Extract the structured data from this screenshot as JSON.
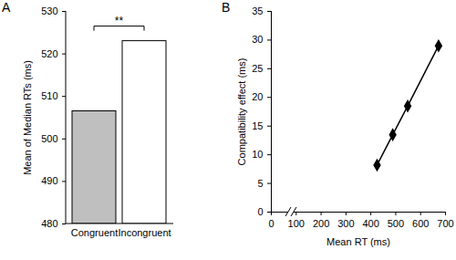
{
  "chart_data": [
    {
      "type": "bar",
      "title": "A",
      "categories": [
        "Congruent",
        "Incongruent"
      ],
      "values": [
        506.5,
        523
      ],
      "colors": [
        "#bfbfbf",
        "#ffffff"
      ],
      "ylabel": "Mean of Median RTs (ms)",
      "ylim": [
        480,
        530
      ],
      "yticks": [
        480,
        490,
        500,
        510,
        520,
        530
      ],
      "annotations": [
        {
          "text": "**",
          "between": [
            "Congruent",
            "Incongruent"
          ]
        }
      ]
    },
    {
      "type": "line",
      "title": "B",
      "x": [
        425,
        488,
        548,
        672
      ],
      "values": [
        8.2,
        13.5,
        18.5,
        29
      ],
      "xlabel": "Mean RT (ms)",
      "ylabel": "Compatibility effect (ms)",
      "xlim": [
        0,
        700
      ],
      "xticks": [
        0,
        100,
        200,
        300,
        400,
        500,
        600,
        700
      ],
      "ylim": [
        0,
        35
      ],
      "yticks": [
        0,
        5,
        10,
        15,
        20,
        25,
        30,
        35
      ],
      "color": "#000000",
      "marker": "diamond",
      "line_style": "solid"
    }
  ]
}
